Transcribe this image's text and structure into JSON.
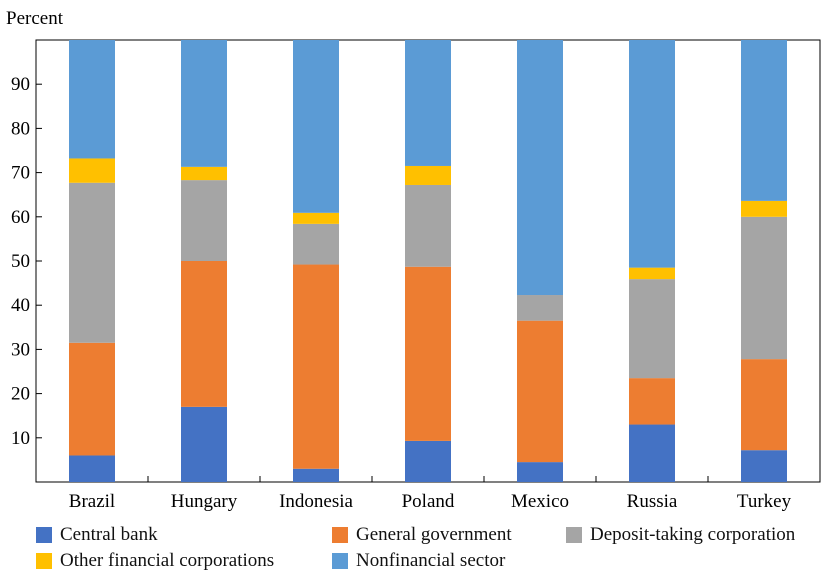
{
  "chart_data": {
    "type": "bar",
    "stacked": true,
    "title": "",
    "xlabel": "",
    "ylabel": "Percent",
    "ylim": [
      0,
      100
    ],
    "yticks": [
      10,
      20,
      30,
      40,
      50,
      60,
      70,
      80,
      90
    ],
    "grid": false,
    "legend_position": "bottom",
    "categories": [
      "Brazil",
      "Hungary",
      "Indonesia",
      "Poland",
      "Mexico",
      "Russia",
      "Turkey"
    ],
    "series": [
      {
        "name": "Central bank",
        "color": "#4472c4",
        "values": [
          6,
          17,
          3,
          9.3,
          4.5,
          13,
          7.2
        ]
      },
      {
        "name": "General government",
        "color": "#ed7d31",
        "values": [
          25.5,
          33,
          46.2,
          39.4,
          32,
          10.5,
          20.6
        ]
      },
      {
        "name": "Deposit-taking corporation",
        "color": "#a5a5a5",
        "values": [
          36.2,
          18.3,
          9.2,
          18.5,
          5.8,
          22.4,
          32.2
        ]
      },
      {
        "name": "Other financial corporations",
        "color": "#ffc000",
        "values": [
          5.5,
          3,
          2.5,
          4.3,
          0,
          2.6,
          3.6
        ]
      },
      {
        "name": "Nonfinancial sector",
        "color": "#5b9bd5",
        "values": [
          26.8,
          28.7,
          39.1,
          28.5,
          57.7,
          51.5,
          36.4
        ]
      }
    ]
  }
}
